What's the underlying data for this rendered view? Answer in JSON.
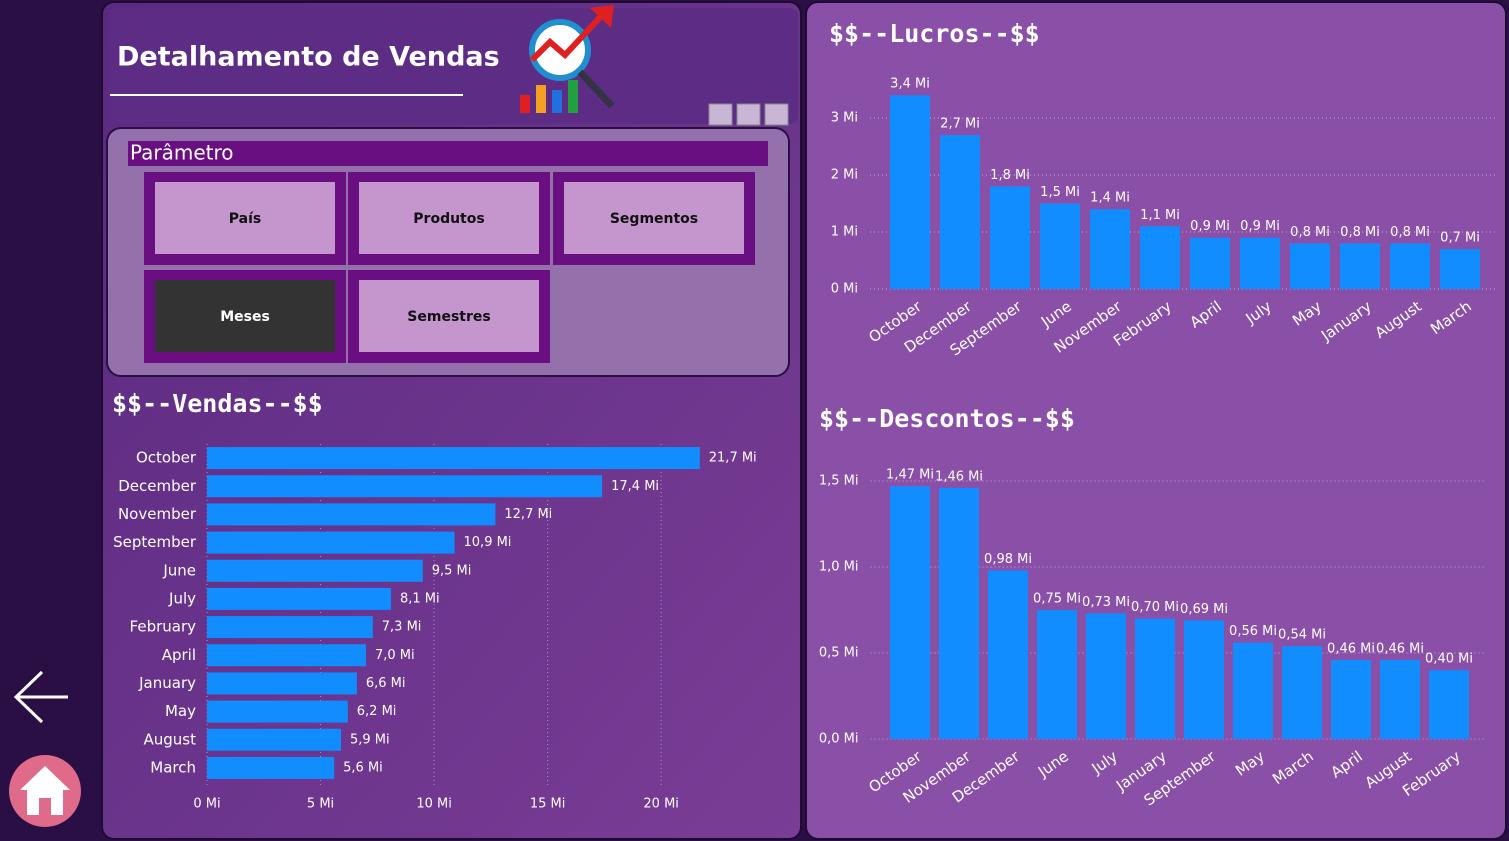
{
  "header": {
    "title": "Detalhamento de Vendas"
  },
  "parameter": {
    "title": "Parâmetro",
    "buttons": [
      "País",
      "Produtos",
      "Segmentos",
      "Meses",
      "Semestres"
    ]
  },
  "chart_data": [
    {
      "type": "barh",
      "title": "$$--Vendas--$$",
      "color": "#118dff",
      "grid": true,
      "categories": [
        "October",
        "December",
        "November",
        "September",
        "June",
        "July",
        "February",
        "April",
        "January",
        "May",
        "August",
        "March"
      ],
      "values": [
        21.7,
        17.4,
        12.7,
        10.9,
        9.5,
        8.1,
        7.3,
        7.0,
        6.6,
        6.2,
        5.9,
        5.6
      ],
      "value_labels": [
        "21,7 Mi",
        "17,4 Mi",
        "12,7 Mi",
        "10,9 Mi",
        "9,5 Mi",
        "8,1 Mi",
        "7,3 Mi",
        "7,0 Mi",
        "6,6 Mi",
        "6,2 Mi",
        "5,9 Mi",
        "5,6 Mi"
      ],
      "xlim": [
        0,
        24
      ],
      "xticks": [
        {
          "value": 0,
          "label": "0 Mi"
        },
        {
          "value": 5,
          "label": "5 Mi"
        },
        {
          "value": 10,
          "label": "10 Mi"
        },
        {
          "value": 15,
          "label": "15 Mi"
        },
        {
          "value": 20,
          "label": "20 Mi"
        }
      ]
    },
    {
      "type": "bar",
      "title": "$$--Lucros--$$",
      "color": "#118dff",
      "grid": true,
      "categories": [
        "October",
        "December",
        "September",
        "June",
        "November",
        "February",
        "April",
        "July",
        "May",
        "January",
        "August",
        "March"
      ],
      "values": [
        3.4,
        2.7,
        1.8,
        1.5,
        1.4,
        1.1,
        0.9,
        0.9,
        0.8,
        0.8,
        0.8,
        0.7
      ],
      "value_labels": [
        "3,4 Mi",
        "2,7 Mi",
        "1,8 Mi",
        "1,5 Mi",
        "1,4 Mi",
        "1,1 Mi",
        "0,9 Mi",
        "0,9 Mi",
        "0,8 Mi",
        "0,8 Mi",
        "0,8 Mi",
        "0,7 Mi"
      ],
      "ylim": [
        0,
        3.5
      ],
      "yticks": [
        {
          "value": 0,
          "label": "0 Mi"
        },
        {
          "value": 1,
          "label": "1 Mi"
        },
        {
          "value": 2,
          "label": "2 Mi"
        },
        {
          "value": 3,
          "label": "3 Mi"
        }
      ]
    },
    {
      "type": "bar",
      "title": "$$--Descontos--$$",
      "color": "#118dff",
      "grid": true,
      "categories": [
        "October",
        "November",
        "December",
        "June",
        "July",
        "January",
        "September",
        "May",
        "March",
        "April",
        "August",
        "February"
      ],
      "values": [
        1.47,
        1.46,
        0.98,
        0.75,
        0.73,
        0.7,
        0.69,
        0.56,
        0.54,
        0.46,
        0.46,
        0.4
      ],
      "value_labels": [
        "1,47 Mi",
        "1,46 Mi",
        "0,98 Mi",
        "0,75 Mi",
        "0,73 Mi",
        "0,70 Mi",
        "0,69 Mi",
        "0,56 Mi",
        "0,54 Mi",
        "0,46 Mi",
        "0,46 Mi",
        "0,40 Mi"
      ],
      "ylim": [
        0,
        1.6
      ],
      "yticks": [
        {
          "value": 0,
          "label": "0,0 Mi"
        },
        {
          "value": 0.5,
          "label": "0,5 Mi"
        },
        {
          "value": 1.0,
          "label": "1,0 Mi"
        },
        {
          "value": 1.5,
          "label": "1,5 Mi"
        }
      ]
    }
  ]
}
